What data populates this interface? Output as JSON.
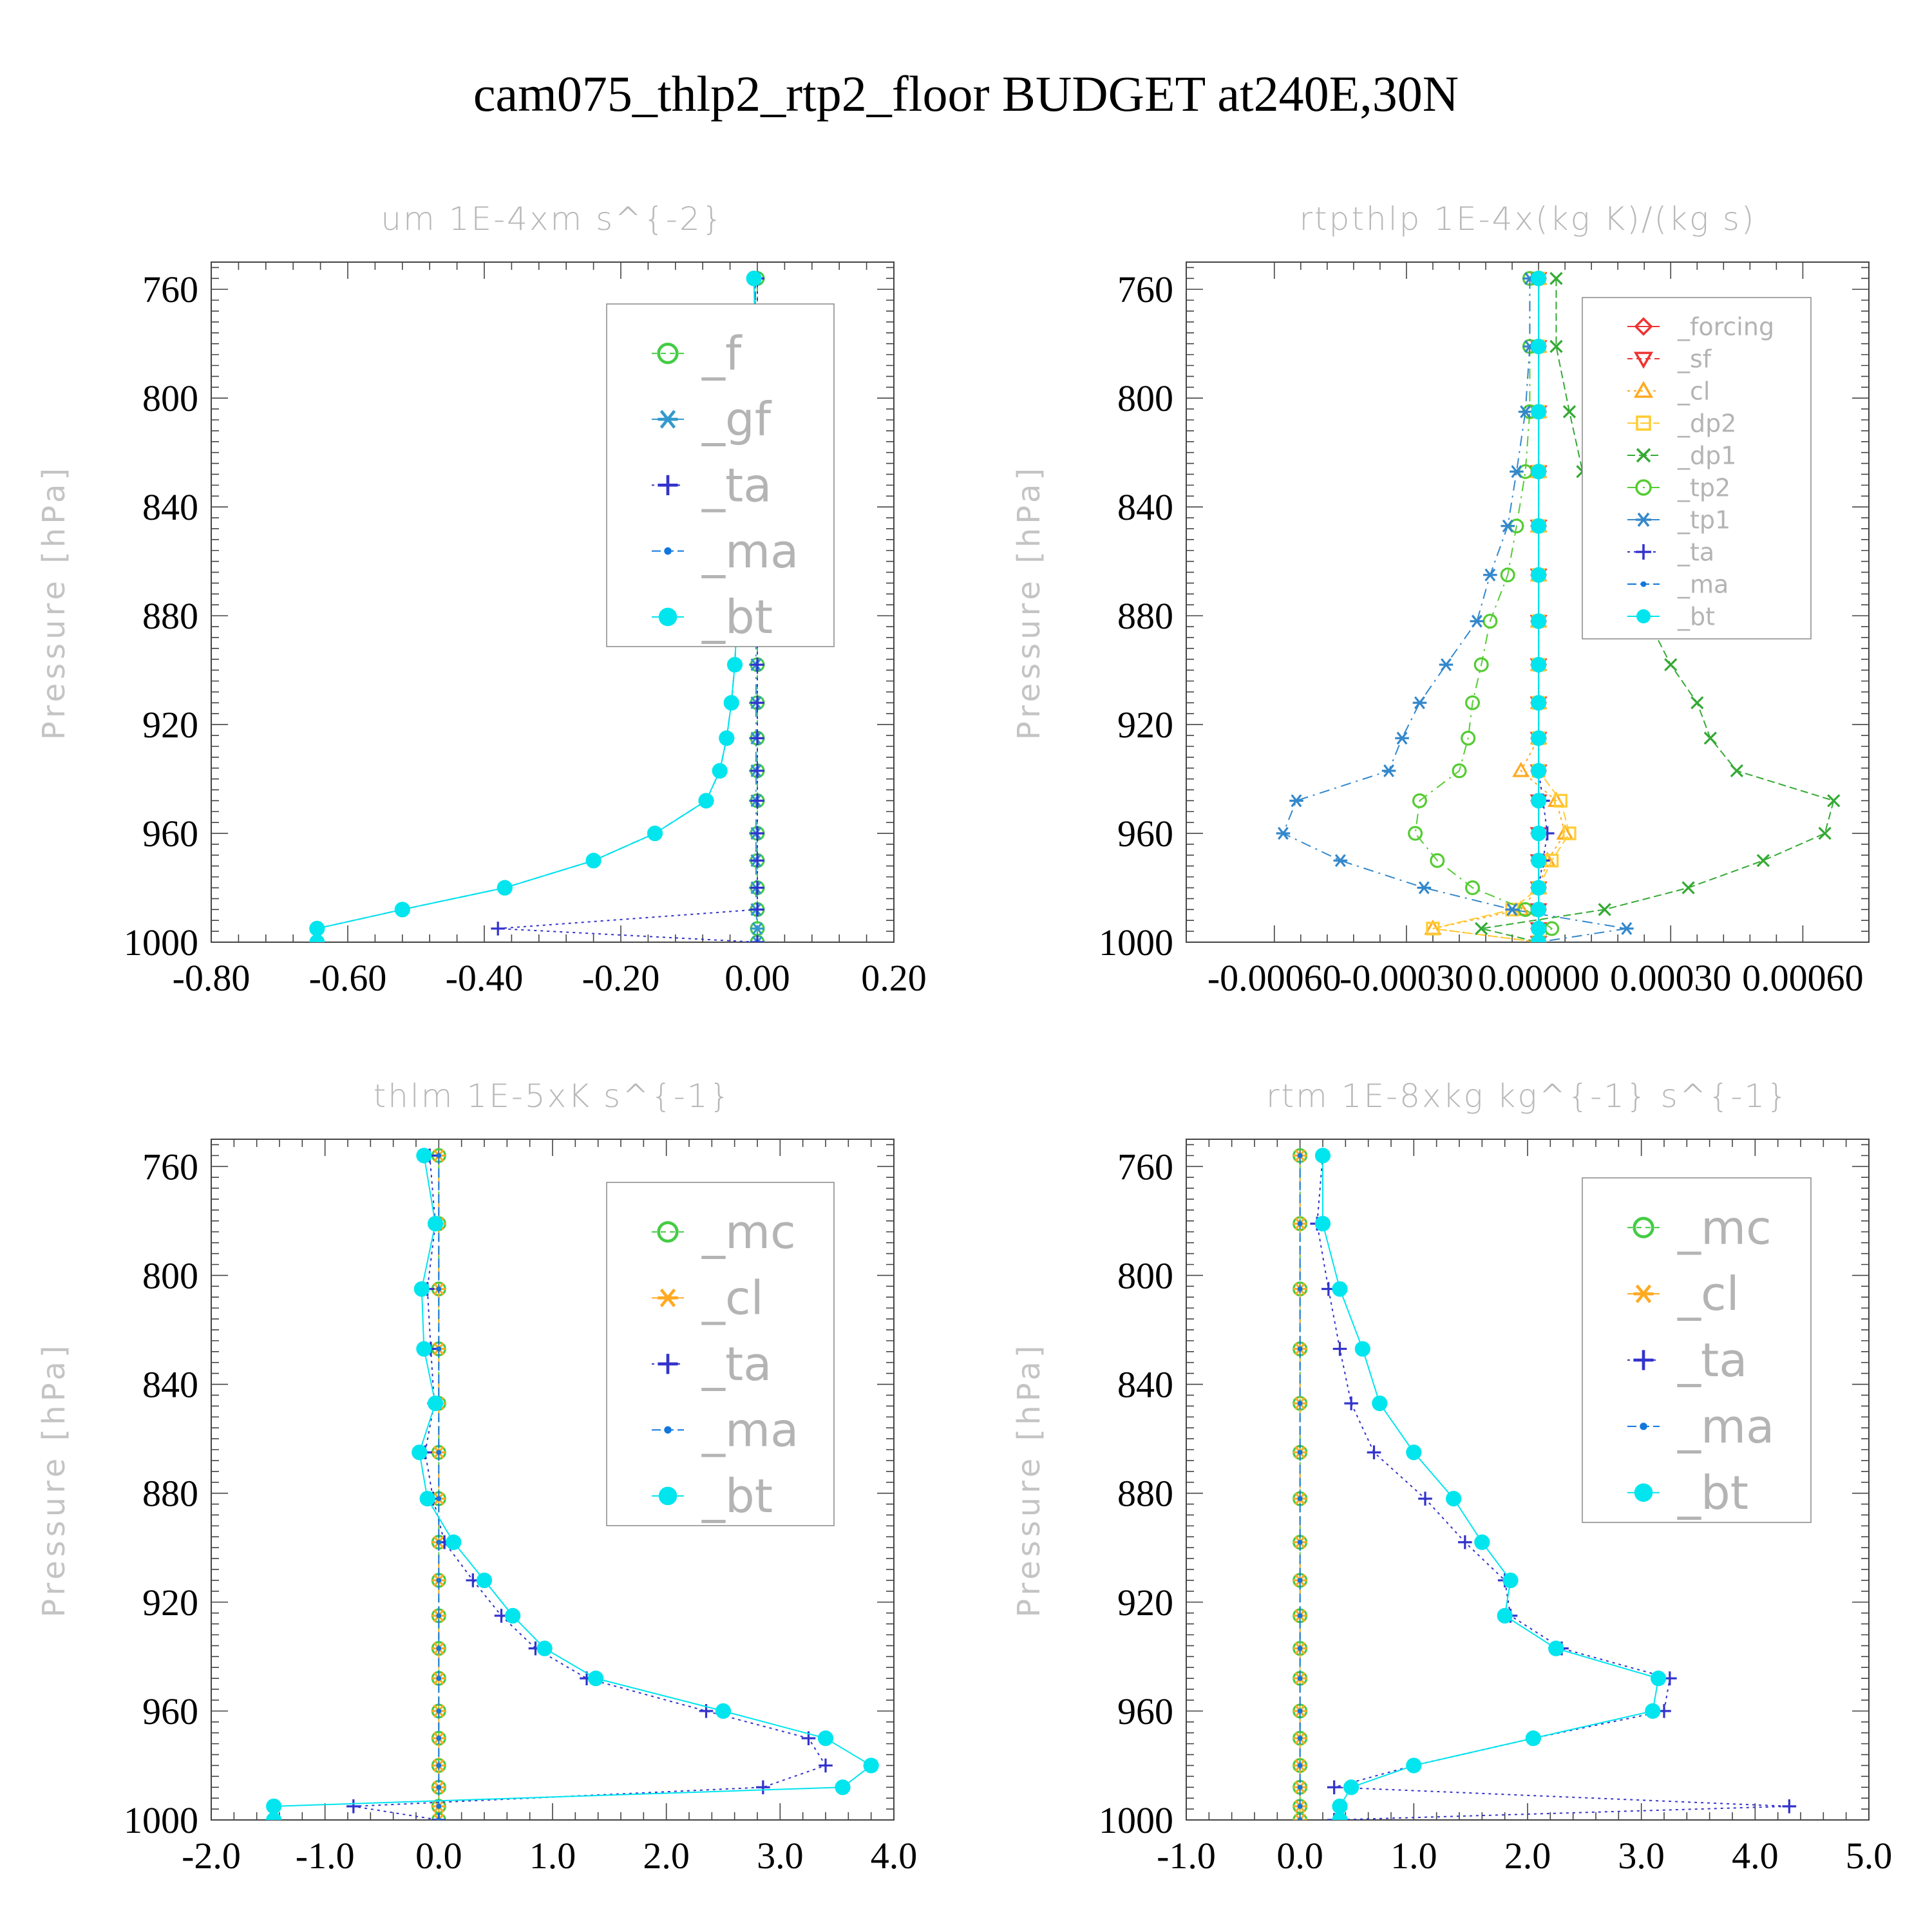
{
  "title": "cam075_thlp2_rtp2_floor  BUDGET at240E,30N",
  "colors": {
    "f": "#44cc44",
    "gf": "#3399cc",
    "ta": "#3333cc",
    "ma": "#1177dd",
    "bt": "#00e5ee",
    "forcing": "#ee3333",
    "sf": "#ee3333",
    "cl": "#ffaa22",
    "dp2": "#ffcc33",
    "dp1": "#33aa33",
    "tp2": "#55cc33",
    "tp1": "#3388cc",
    "mc": "#44cc44"
  },
  "chart_data": [
    {
      "type": "line",
      "title": "um  1E-4xm s^{-2}",
      "ylabel": "Pressure [hPa]",
      "yticks": [
        "760",
        "800",
        "840",
        "880",
        "920",
        "960",
        "1000"
      ],
      "xticks": [
        "-0.80",
        "-0.60",
        "-0.40",
        "-0.20",
        "0.00",
        "0.20"
      ],
      "xlim": [
        -0.8,
        0.2
      ],
      "ylim": [
        1000,
        750
      ],
      "legend_position": "top-right",
      "pressure": [
        756,
        781,
        805,
        827,
        847,
        865,
        882,
        898,
        912,
        925,
        937,
        948,
        960,
        970,
        980,
        988,
        995,
        1000
      ],
      "series": [
        {
          "name": "_f",
          "marker": "circle-open",
          "dash": "8,6",
          "values": [
            0,
            0,
            0,
            0,
            0,
            0,
            0,
            0,
            0,
            0,
            0,
            0,
            0,
            0,
            0,
            0,
            0,
            0
          ]
        },
        {
          "name": "_gf",
          "marker": "asterisk",
          "dash": "16,8,3,8",
          "values": [
            -0.003,
            -0.003,
            -0.002,
            -0.002,
            -0.002,
            -0.002,
            -0.002,
            -0.002,
            -0.002,
            -0.002,
            -0.002,
            -0.002,
            -0.002,
            -0.002,
            -0.002,
            -0.002,
            0,
            0
          ]
        },
        {
          "name": "_ta",
          "marker": "plus",
          "dash": "4,6",
          "values": [
            0,
            0,
            0,
            0,
            0,
            0,
            0,
            0,
            0,
            0,
            0,
            0,
            0,
            0,
            0,
            0,
            -0.38,
            0
          ]
        },
        {
          "name": "_ma",
          "marker": "dot",
          "dash": "14,6",
          "values": [
            -0.003,
            -0.003,
            -0.007,
            -0.013,
            -0.02,
            -0.026,
            -0.03,
            -0.033,
            -0.038,
            -0.045,
            -0.055,
            -0.075,
            -0.15,
            -0.24,
            -0.37,
            -0.52,
            -0.645,
            -0.645
          ]
        },
        {
          "name": "_bt",
          "marker": "dot-filled",
          "dash": "",
          "values": [
            -0.005,
            -0.003,
            -0.01,
            -0.015,
            -0.02,
            -0.026,
            -0.03,
            -0.033,
            -0.038,
            -0.045,
            -0.055,
            -0.075,
            -0.15,
            -0.24,
            -0.37,
            -0.52,
            -0.645,
            -0.645
          ]
        }
      ]
    },
    {
      "type": "line",
      "title": "rtpthlp  1E-4x(kg K)/(kg s)",
      "ylabel": "Pressure [hPa]",
      "yticks": [
        "760",
        "800",
        "840",
        "880",
        "920",
        "960",
        "1000"
      ],
      "xticks": [
        "-0.00060",
        "-0.00030",
        "0.00000",
        "0.00030",
        "0.00060"
      ],
      "xlim": [
        -0.0008,
        0.00075
      ],
      "ylim": [
        1000,
        750
      ],
      "legend_position": "top-right",
      "pressure": [
        756,
        781,
        805,
        827,
        847,
        865,
        882,
        898,
        912,
        925,
        937,
        948,
        960,
        970,
        980,
        988,
        995,
        1000
      ],
      "series": [
        {
          "name": "_forcing",
          "marker": "diamond-open",
          "dash": "",
          "values": [
            0,
            0,
            0,
            0,
            0,
            0,
            0,
            0,
            0,
            0,
            0,
            0,
            0,
            0,
            0,
            0,
            0,
            0
          ]
        },
        {
          "name": "_sf",
          "marker": "triangle-down-open",
          "dash": "8,6",
          "values": [
            0,
            0,
            0,
            0,
            0,
            0,
            0,
            0,
            0,
            0,
            0,
            0,
            0,
            0,
            0,
            0,
            0,
            0
          ]
        },
        {
          "name": "_cl",
          "marker": "triangle-up-open",
          "dash": "4,6",
          "values": [
            0,
            0,
            0,
            0,
            0,
            0,
            0,
            0,
            0,
            0,
            -4e-05,
            4e-05,
            6e-05,
            2e-05,
            0,
            -4e-05,
            -0.00024,
            0
          ]
        },
        {
          "name": "_dp2",
          "marker": "square-open",
          "dash": "14,6",
          "values": [
            0,
            0,
            0,
            0,
            0,
            0,
            0,
            0,
            0,
            0,
            0,
            5e-05,
            7e-05,
            3e-05,
            0,
            -6e-05,
            -0.00024,
            0
          ]
        },
        {
          "name": "_dp1",
          "marker": "cross",
          "dash": "12,6",
          "values": [
            4e-05,
            4e-05,
            7e-05,
            0.0001,
            0.00013,
            0.00018,
            0.00025,
            0.0003,
            0.00036,
            0.00039,
            0.00045,
            0.00067,
            0.00065,
            0.00051,
            0.00034,
            0.00015,
            -0.00013,
            0
          ]
        },
        {
          "name": "_tp2",
          "marker": "circle-open",
          "dash": "16,8,3,8",
          "values": [
            -2e-05,
            -2e-05,
            -2e-05,
            -3e-05,
            -5e-05,
            -7e-05,
            -0.00011,
            -0.00013,
            -0.00015,
            -0.00016,
            -0.00018,
            -0.00027,
            -0.00028,
            -0.00023,
            -0.00015,
            -3e-05,
            3e-05,
            0
          ]
        },
        {
          "name": "_tp1",
          "marker": "asterisk",
          "dash": "16,8,3,8",
          "values": [
            -2e-05,
            -2e-05,
            -3e-05,
            -5e-05,
            -7e-05,
            -0.00011,
            -0.00014,
            -0.00021,
            -0.00027,
            -0.00031,
            -0.00034,
            -0.00055,
            -0.00058,
            -0.00045,
            -0.00026,
            -6e-05,
            0.0002,
            0
          ]
        },
        {
          "name": "_ta",
          "marker": "plus",
          "dash": "4,6",
          "values": [
            0,
            0,
            0,
            0,
            0,
            0,
            0,
            0,
            0,
            0,
            0,
            1e-05,
            2e-05,
            1e-05,
            0,
            0,
            0,
            0
          ]
        },
        {
          "name": "_ma",
          "marker": "dot",
          "dash": "14,6",
          "values": [
            0,
            0,
            0,
            0,
            0,
            0,
            0,
            0,
            0,
            0,
            0,
            0,
            0,
            0,
            0,
            0,
            0,
            0
          ]
        },
        {
          "name": "_bt",
          "marker": "dot-filled",
          "dash": "",
          "values": [
            0,
            0,
            0,
            0,
            0,
            0,
            0,
            0,
            0,
            0,
            0,
            0,
            0,
            0,
            0,
            0,
            0,
            0
          ]
        }
      ]
    },
    {
      "type": "line",
      "title": "thlm  1E-5xK s^{-1}",
      "ylabel": "Pressure [hPa]",
      "yticks": [
        "760",
        "800",
        "840",
        "880",
        "920",
        "960",
        "1000"
      ],
      "xticks": [
        "-2.0",
        "-1.0",
        "0.0",
        "1.0",
        "2.0",
        "3.0",
        "4.0"
      ],
      "xlim": [
        -2.0,
        4.0
      ],
      "ylim": [
        1000,
        750
      ],
      "legend_position": "top-right",
      "pressure": [
        756,
        781,
        805,
        827,
        847,
        865,
        882,
        898,
        912,
        925,
        937,
        948,
        960,
        970,
        980,
        988,
        995,
        1000
      ],
      "series": [
        {
          "name": "_mc",
          "marker": "circle-open",
          "dash": "8,6",
          "values": [
            0,
            0,
            0,
            0,
            0,
            0,
            0,
            0,
            0,
            0,
            0,
            0,
            0,
            0,
            0,
            0,
            0,
            0
          ]
        },
        {
          "name": "_cl",
          "marker": "asterisk",
          "dash": "16,8,3,8",
          "values": [
            0,
            0,
            0,
            0,
            0,
            0,
            0,
            0,
            0,
            0,
            0,
            0,
            0,
            0,
            0,
            0,
            0,
            0
          ]
        },
        {
          "name": "_ta",
          "marker": "plus",
          "dash": "4,6",
          "values": [
            -0.08,
            -0.03,
            -0.1,
            -0.07,
            -0.04,
            -0.12,
            -0.05,
            0.05,
            0.3,
            0.55,
            0.85,
            1.3,
            2.35,
            3.25,
            3.4,
            2.85,
            -0.75,
            0
          ]
        },
        {
          "name": "_ma",
          "marker": "dot",
          "dash": "14,6",
          "values": [
            0,
            0,
            0,
            0,
            0,
            0,
            0,
            0,
            0,
            0,
            0,
            0,
            0,
            0,
            0,
            0,
            0,
            0
          ]
        },
        {
          "name": "_bt",
          "marker": "dot-filled",
          "dash": "",
          "values": [
            -0.13,
            -0.03,
            -0.15,
            -0.13,
            -0.03,
            -0.17,
            -0.1,
            0.13,
            0.4,
            0.65,
            0.93,
            1.38,
            2.5,
            3.4,
            3.8,
            3.55,
            -1.45,
            -1.45
          ]
        }
      ]
    },
    {
      "type": "line",
      "title": "rtm  1E-8xkg kg^{-1} s^{-1}",
      "ylabel": "Pressure [hPa]",
      "yticks": [
        "760",
        "800",
        "840",
        "880",
        "920",
        "960",
        "1000"
      ],
      "xticks": [
        "-1.0",
        "0.0",
        "1.0",
        "2.0",
        "3.0",
        "4.0",
        "5.0"
      ],
      "xlim": [
        -1.0,
        5.0
      ],
      "ylim": [
        1000,
        750
      ],
      "legend_position": "top-right",
      "pressure": [
        756,
        781,
        805,
        827,
        847,
        865,
        882,
        898,
        912,
        925,
        937,
        948,
        960,
        970,
        980,
        988,
        995,
        1000
      ],
      "series": [
        {
          "name": "_mc",
          "marker": "circle-open",
          "dash": "8,6",
          "values": [
            0,
            0,
            0,
            0,
            0,
            0,
            0,
            0,
            0,
            0,
            0,
            0,
            0,
            0,
            0,
            0,
            0,
            0
          ]
        },
        {
          "name": "_cl",
          "marker": "asterisk",
          "dash": "16,8,3,8",
          "values": [
            0,
            0,
            0,
            0,
            0,
            0,
            0,
            0,
            0,
            0,
            0,
            0,
            0,
            0,
            0,
            0,
            0,
            0
          ]
        },
        {
          "name": "_ta",
          "marker": "plus",
          "dash": "4,6",
          "values": [
            0.2,
            0.15,
            0.25,
            0.35,
            0.45,
            0.65,
            1.1,
            1.45,
            1.8,
            1.85,
            2.3,
            3.25,
            3.2,
            2.05,
            1.0,
            0.3,
            4.3,
            0.3
          ]
        },
        {
          "name": "_ma",
          "marker": "dot",
          "dash": "14,6",
          "values": [
            0,
            0,
            0,
            0,
            0,
            0,
            0,
            0,
            0,
            0,
            0,
            0,
            0,
            0,
            0,
            0,
            0,
            0
          ]
        },
        {
          "name": "_bt",
          "marker": "dot-filled",
          "dash": "",
          "values": [
            0.2,
            0.2,
            0.35,
            0.55,
            0.7,
            1.0,
            1.35,
            1.6,
            1.85,
            1.8,
            2.25,
            3.15,
            3.1,
            2.05,
            1.0,
            0.45,
            0.35,
            0.35
          ]
        }
      ]
    }
  ]
}
